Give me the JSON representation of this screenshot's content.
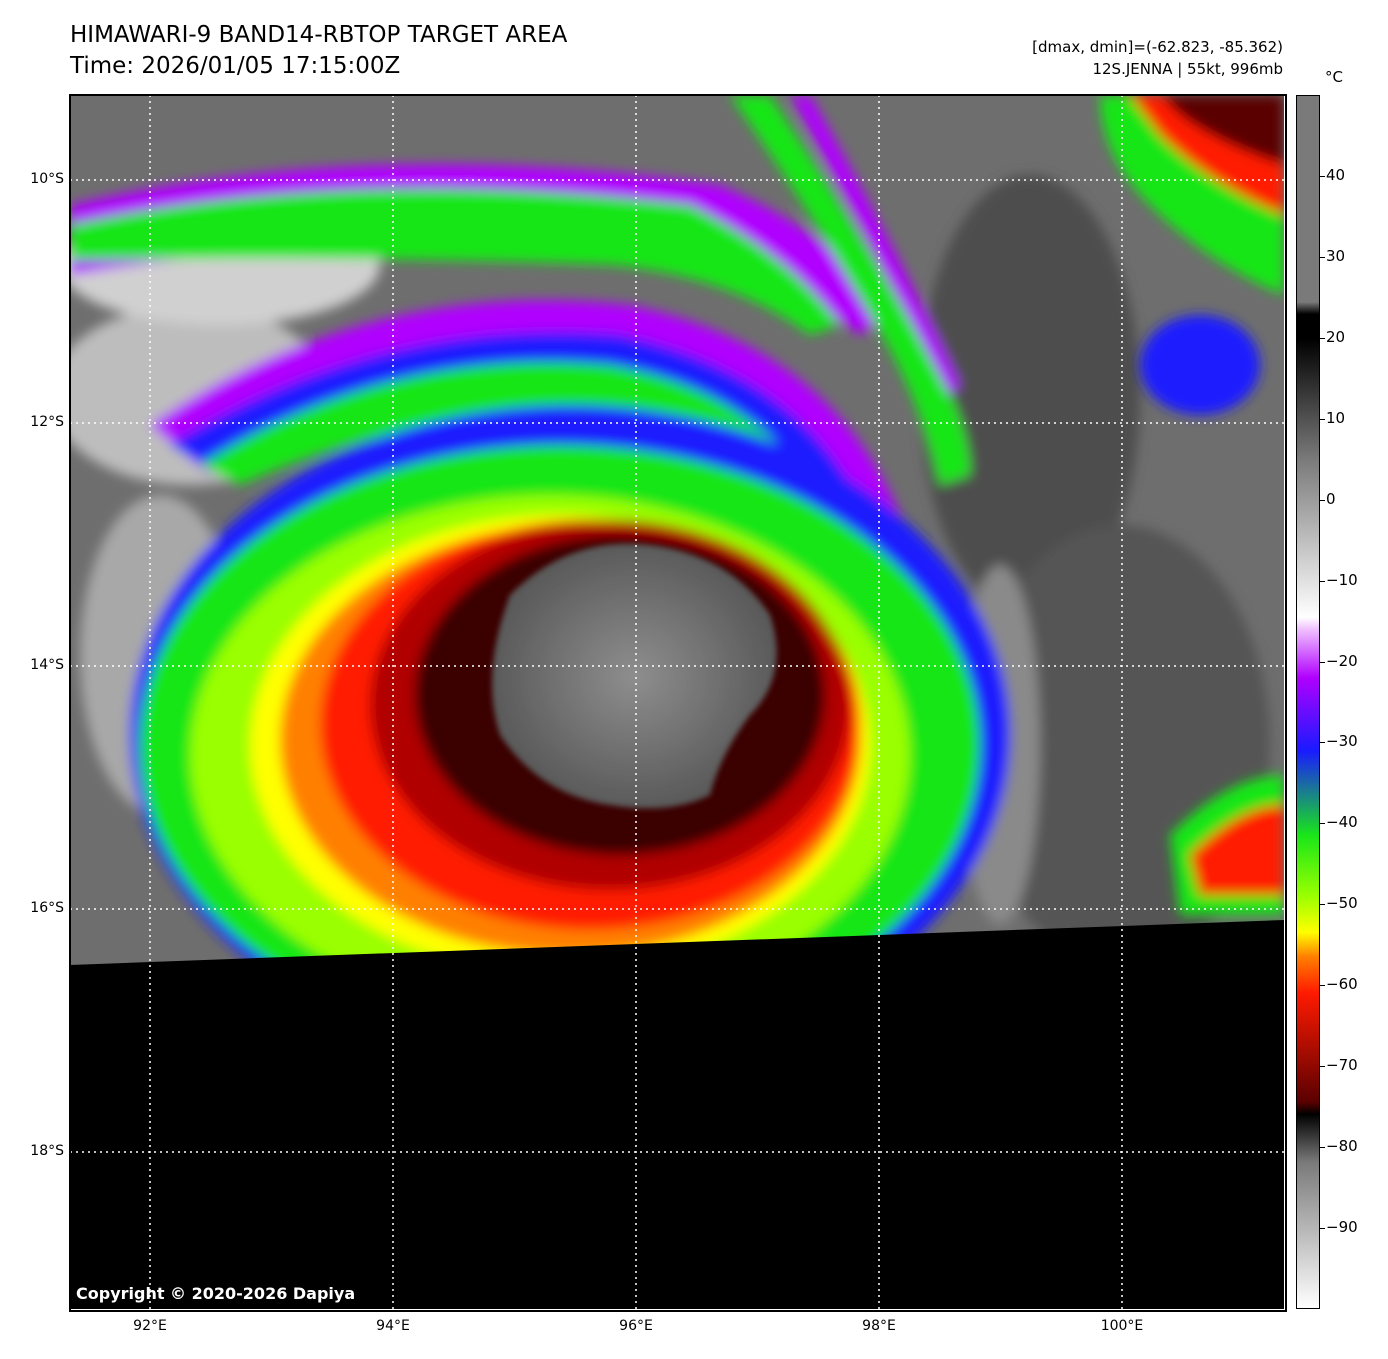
{
  "title": {
    "line1": "HIMAWARI-9 BAND14-RBTOP TARGET AREA",
    "line2": "Time: 2026/01/05 17:15:00Z"
  },
  "info": {
    "dmax_dmin": "[dmax, dmin]=(-62.823, -85.362)",
    "storm": "12S.JENNA | 55kt, 996mb"
  },
  "map": {
    "lat_labels": [
      "10°S",
      "12°S",
      "14°S",
      "16°S",
      "18°S"
    ],
    "lon_labels": [
      "92°E",
      "94°E",
      "96°E",
      "98°E",
      "100°E"
    ],
    "copyright": "Copyright © 2020-2026 Dapiya"
  },
  "colorbar": {
    "unit": "°C",
    "ticks": [
      "40",
      "30",
      "20",
      "10",
      "0",
      "−10",
      "−20",
      "−30",
      "−40",
      "−50",
      "−60",
      "−70",
      "−80",
      "−90"
    ],
    "tick_values": [
      40,
      30,
      20,
      10,
      0,
      -10,
      -20,
      -30,
      -40,
      -50,
      -60,
      -70,
      -80,
      -90
    ],
    "range": [
      -100,
      50
    ],
    "colors": {
      "white": "#ffffff",
      "gray": "#7a7a7a",
      "black": "#000000",
      "violet": "#b000ff",
      "blue": "#1a1aff",
      "green": "#19e619",
      "yellow": "#ffff00",
      "orange": "#ff8000",
      "red": "#ff1a00",
      "darkred": "#5a0000"
    }
  }
}
